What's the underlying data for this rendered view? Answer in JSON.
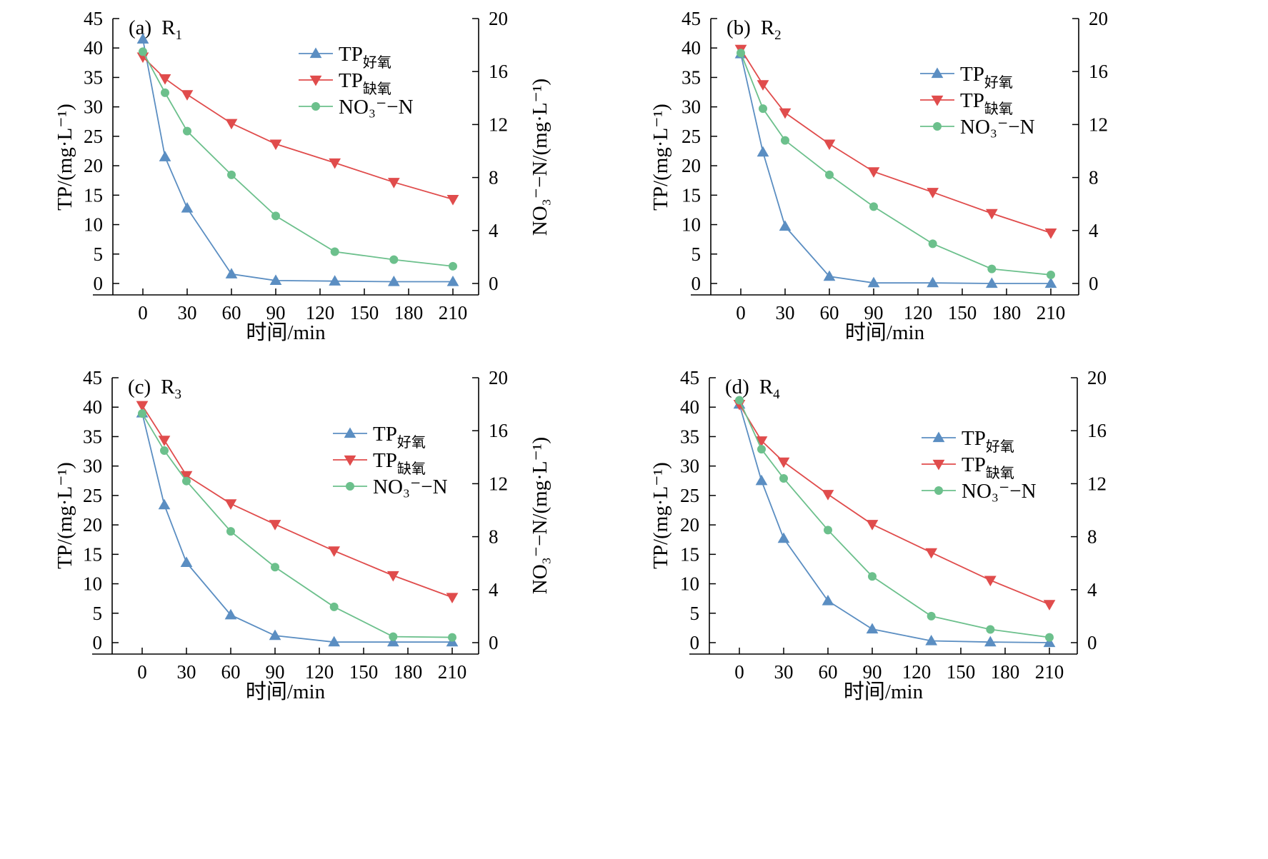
{
  "chart_data": [
    {
      "type": "line",
      "panel_letter": "(a)",
      "panel_reactor": "R",
      "panel_reactor_sub": "1",
      "x": [
        0,
        15,
        30,
        60,
        90,
        130,
        170,
        210
      ],
      "x_ticks": [
        0,
        30,
        60,
        90,
        120,
        150,
        180,
        210
      ],
      "xlim": [
        -20,
        230
      ],
      "xlabel": "时间/min",
      "ylabel_left": "TP/(mg·L⁻¹)",
      "ylim_left": [
        0,
        45
      ],
      "y_ticks_left": [
        0,
        5,
        10,
        15,
        20,
        25,
        30,
        35,
        40,
        45
      ],
      "ylabel_right": "NO₃⁻−N/(mg·L⁻¹)",
      "ylim_right": [
        0,
        20
      ],
      "y_ticks_right": [
        0,
        4,
        8,
        12,
        16,
        20
      ],
      "legend_position": "top-right",
      "series": [
        {
          "name": "TP",
          "name_sub": "好氧",
          "axis": "left",
          "marker": "triangle-up",
          "color": "#5b8ec2",
          "values": [
            41.5,
            21.5,
            12.8,
            1.6,
            0.5,
            0.4,
            0.3,
            0.3
          ]
        },
        {
          "name": "TP",
          "name_sub": "缺氧",
          "axis": "left",
          "marker": "triangle-down",
          "color": "#e04c4c",
          "values": [
            38.5,
            34.8,
            32.1,
            27.2,
            23.7,
            20.5,
            17.2,
            14.3
          ]
        },
        {
          "name": "NO₃⁻−N",
          "name_sub": "",
          "axis": "right",
          "marker": "circle",
          "color": "#6cc08c",
          "values": [
            17.5,
            14.4,
            11.5,
            8.2,
            5.1,
            2.4,
            1.8,
            1.3
          ]
        }
      ]
    },
    {
      "type": "line",
      "panel_letter": "(b)",
      "panel_reactor": "R",
      "panel_reactor_sub": "2",
      "x": [
        0,
        15,
        30,
        60,
        90,
        130,
        170,
        210
      ],
      "x_ticks": [
        0,
        30,
        60,
        90,
        120,
        150,
        180,
        210
      ],
      "xlim": [
        -20,
        230
      ],
      "xlabel": "时间/min",
      "ylabel_left": "TP/(mg·L⁻¹)",
      "ylim_left": [
        0,
        45
      ],
      "y_ticks_left": [
        0,
        5,
        10,
        15,
        20,
        25,
        30,
        35,
        40,
        45
      ],
      "ylabel_right": "",
      "ylim_right": [
        0,
        20
      ],
      "y_ticks_right": [
        0,
        4,
        8,
        12,
        16,
        20
      ],
      "legend_position": "top-right",
      "series": [
        {
          "name": "TP",
          "name_sub": "好氧",
          "axis": "left",
          "marker": "triangle-up",
          "color": "#5b8ec2",
          "values": [
            39.0,
            22.3,
            9.7,
            1.2,
            0.1,
            0.1,
            0.0,
            0.0
          ]
        },
        {
          "name": "TP",
          "name_sub": "缺氧",
          "axis": "left",
          "marker": "triangle-down",
          "color": "#e04c4c",
          "values": [
            39.8,
            33.8,
            29.0,
            23.7,
            19.0,
            15.5,
            11.9,
            8.6
          ]
        },
        {
          "name": "NO₃⁻−N",
          "name_sub": "",
          "axis": "right",
          "marker": "circle",
          "color": "#6cc08c",
          "values": [
            17.4,
            13.2,
            10.8,
            8.2,
            5.8,
            3.0,
            1.1,
            0.65
          ]
        }
      ]
    },
    {
      "type": "line",
      "panel_letter": "(c)",
      "panel_reactor": "R",
      "panel_reactor_sub": "3",
      "x": [
        0,
        15,
        30,
        60,
        90,
        130,
        170,
        210
      ],
      "x_ticks": [
        0,
        30,
        60,
        90,
        120,
        150,
        180,
        210
      ],
      "xlim": [
        -20,
        230
      ],
      "xlabel": "时间/min",
      "ylabel_left": "TP/(mg·L⁻¹)",
      "ylim_left": [
        0,
        45
      ],
      "y_ticks_left": [
        0,
        5,
        10,
        15,
        20,
        25,
        30,
        35,
        40,
        45
      ],
      "ylabel_right": "NO₃⁻−N/(mg·L⁻¹)",
      "ylim_right": [
        0,
        20
      ],
      "y_ticks_right": [
        0,
        4,
        8,
        12,
        16,
        20
      ],
      "legend_position": "top-right",
      "series": [
        {
          "name": "TP",
          "name_sub": "好氧",
          "axis": "left",
          "marker": "triangle-up",
          "color": "#5b8ec2",
          "values": [
            39.0,
            23.4,
            13.6,
            4.7,
            1.2,
            0.1,
            0.1,
            0.1
          ]
        },
        {
          "name": "TP",
          "name_sub": "缺氧",
          "axis": "left",
          "marker": "triangle-down",
          "color": "#e04c4c",
          "values": [
            40.3,
            34.4,
            28.4,
            23.6,
            20.1,
            15.6,
            11.4,
            7.7
          ]
        },
        {
          "name": "NO₃⁻−N",
          "name_sub": "",
          "axis": "right",
          "marker": "circle",
          "color": "#6cc08c",
          "values": [
            17.3,
            14.5,
            12.2,
            8.4,
            5.7,
            2.7,
            0.45,
            0.4
          ]
        }
      ]
    },
    {
      "type": "line",
      "panel_letter": "(d)",
      "panel_reactor": "R",
      "panel_reactor_sub": "4",
      "x": [
        0,
        15,
        30,
        60,
        90,
        130,
        170,
        210
      ],
      "x_ticks": [
        0,
        30,
        60,
        90,
        120,
        150,
        180,
        210
      ],
      "xlim": [
        -20,
        230
      ],
      "xlabel": "时间/min",
      "ylabel_left": "TP/(mg·L⁻¹)",
      "ylim_left": [
        0,
        45
      ],
      "y_ticks_left": [
        0,
        5,
        10,
        15,
        20,
        25,
        30,
        35,
        40,
        45
      ],
      "ylabel_right": "",
      "ylim_right": [
        0,
        20
      ],
      "y_ticks_right": [
        0,
        4,
        8,
        12,
        16,
        20
      ],
      "legend_position": "top-right",
      "series": [
        {
          "name": "TP",
          "name_sub": "好氧",
          "axis": "left",
          "marker": "triangle-up",
          "color": "#5b8ec2",
          "values": [
            40.5,
            27.5,
            17.7,
            7.1,
            2.3,
            0.3,
            0.1,
            0.0
          ]
        },
        {
          "name": "TP",
          "name_sub": "缺氧",
          "axis": "left",
          "marker": "triangle-down",
          "color": "#e04c4c",
          "values": [
            40.5,
            34.3,
            30.7,
            25.2,
            20.1,
            15.3,
            10.6,
            6.5
          ]
        },
        {
          "name": "NO₃⁻−N",
          "name_sub": "",
          "axis": "right",
          "marker": "circle",
          "color": "#6cc08c",
          "values": [
            18.3,
            14.6,
            12.4,
            8.5,
            5.0,
            2.0,
            1.0,
            0.4
          ]
        }
      ]
    }
  ]
}
